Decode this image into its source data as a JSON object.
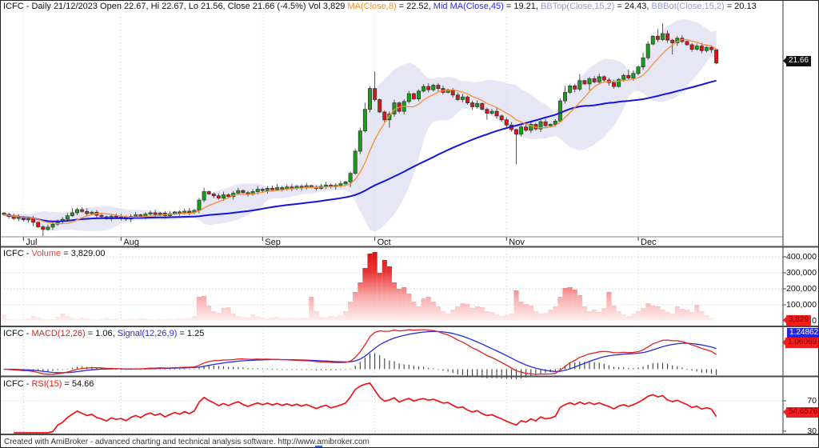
{
  "colors": {
    "candle_up": "#0fa412",
    "candle_down": "#e11212",
    "wick": "#444444",
    "ma8": "#f59133",
    "ma45": "#1515dd",
    "bb_band_fill": "#d6d6ee",
    "volume_top": "#df0f0f",
    "volume_bottom": "#fdf0ef",
    "macd_line": "#e02020",
    "signal_line": "#2a2ae0",
    "histogram": "#3d3d3d",
    "rsi_line": "#ef1212",
    "grid": "#cccccc",
    "panel_border": "#4a4a4a"
  },
  "price_panel": {
    "title_parts": [
      {
        "t": "ICFC - Daily 21/12/2023 Open 22.67, Hi 22.67, Lo 21.56, Close 21.66 (-4.5%) Vol 3,829 ",
        "c": "#111111"
      },
      {
        "t": "MA(Close,8)",
        "c": "#f59133"
      },
      {
        "t": " = 22.52, ",
        "c": "#111111"
      },
      {
        "t": "Mid MA(Close,45)",
        "c": "#2a2ae0"
      },
      {
        "t": " = 19.21, ",
        "c": "#111111"
      },
      {
        "t": "BBTop(Close,15,2)",
        "c": "#9a9ad0"
      },
      {
        "t": " = 24.43, ",
        "c": "#111111"
      },
      {
        "t": "BBBot(Close,15,2)",
        "c": "#9a9ad0"
      },
      {
        "t": " = 20.13",
        "c": "#111111"
      }
    ],
    "price_badge": "21.66"
  },
  "volume_panel": {
    "title_parts": [
      {
        "t": "ICFC - ",
        "c": "#111111"
      },
      {
        "t": "Volume",
        "c": "#e04545"
      },
      {
        "t": " = 3,829.00",
        "c": "#111111"
      }
    ],
    "y_ticks": [
      {
        "label": "400,000",
        "v": 400000
      },
      {
        "label": "300,000",
        "v": 300000
      },
      {
        "label": "200,000",
        "v": 200000
      },
      {
        "label": "100,000",
        "v": 100000
      }
    ],
    "zero_label": "0",
    "volume_badge": "3,829"
  },
  "macd_panel": {
    "title_parts": [
      {
        "t": "ICFC - ",
        "c": "#111111"
      },
      {
        "t": "MACD(12,26)",
        "c": "#e02020"
      },
      {
        "t": " = 1.06, ",
        "c": "#111111"
      },
      {
        "t": "Signal(12,26,9)",
        "c": "#2a2ae0"
      },
      {
        "t": " = 1.25",
        "c": "#111111"
      }
    ],
    "signal_badge": "1.24862",
    "macd_badge": "1.06069"
  },
  "rsi_panel": {
    "title_parts": [
      {
        "t": "ICFC - ",
        "c": "#111111"
      },
      {
        "t": "RSI(15)",
        "c": "#e02020"
      },
      {
        "t": " = 54.66",
        "c": "#111111"
      }
    ],
    "y_ticks": [
      {
        "label": "70",
        "v": 70
      },
      {
        "label": "30",
        "v": 30
      }
    ],
    "rsi_badge": "54.6576"
  },
  "footer": {
    "text": "Created with AmiBroker - advanced charting and technical analysis software. http://www.amibroker.com"
  },
  "chart_data": [
    {
      "type": "candlestick",
      "name": "price",
      "symbol": "ICFC",
      "timeframe": "Daily",
      "date": "21/12/2023",
      "today": {
        "open": 22.67,
        "high": 22.67,
        "low": 21.56,
        "close": 21.66,
        "change_pct": "-4.5%",
        "volume": 3829
      },
      "indicator_values": {
        "ma8": 22.52,
        "ma45": 19.21,
        "bbtop": 24.43,
        "bbbot": 20.13
      },
      "x_ticks": [
        {
          "label": "Jul",
          "i": 4
        },
        {
          "label": "Aug",
          "i": 24
        },
        {
          "label": "Sep",
          "i": 53
        },
        {
          "label": "Oct",
          "i": 76
        },
        {
          "label": "Nov",
          "i": 103
        },
        {
          "label": "Dec",
          "i": 130
        }
      ],
      "close": [
        10.05,
        9.9,
        9.75,
        9.82,
        9.65,
        9.72,
        9.45,
        9.1,
        8.9,
        9.08,
        9.3,
        9.55,
        9.68,
        9.95,
        10.18,
        10.42,
        10.28,
        10.12,
        10.22,
        9.98,
        9.88,
        9.72,
        9.92,
        9.8,
        9.86,
        9.7,
        9.9,
        10.02,
        9.88,
        10.08,
        10.18,
        10.05,
        10.15,
        9.96,
        10.1,
        10.24,
        10.14,
        10.3,
        10.2,
        10.36,
        11.15,
        11.8,
        11.62,
        11.48,
        11.3,
        11.55,
        11.42,
        11.68,
        11.88,
        11.72,
        11.6,
        11.8,
        11.98,
        11.88,
        12.05,
        11.95,
        12.1,
        12.0,
        12.15,
        12.05,
        12.2,
        12.1,
        12.25,
        12.15,
        12.05,
        12.2,
        12.3,
        12.18,
        12.28,
        12.4,
        12.55,
        13.2,
        14.9,
        16.45,
        18.1,
        19.7,
        18.85,
        17.9,
        17.3,
        17.75,
        18.6,
        17.95,
        18.7,
        19.3,
        18.9,
        19.5,
        19.85,
        19.6,
        19.95,
        19.7,
        19.4,
        19.6,
        19.2,
        18.85,
        19.05,
        18.6,
        18.3,
        18.55,
        18.1,
        17.8,
        17.95,
        17.6,
        17.3,
        16.9,
        16.55,
        16.2,
        16.75,
        16.5,
        16.95,
        16.6,
        17.15,
        16.85,
        16.95,
        17.2,
        18.75,
        19.4,
        19.9,
        19.65,
        20.3,
        20.05,
        20.45,
        20.2,
        20.6,
        20.35,
        20.15,
        19.85,
        20.4,
        20.7,
        20.5,
        20.85,
        21.35,
        22.05,
        23.1,
        23.7,
        23.45,
        23.9,
        23.4,
        23.2,
        23.55,
        23.3,
        23.05,
        22.7,
        22.95,
        22.6,
        22.85,
        22.67,
        21.66
      ],
      "wick_up_overrides": {
        "14": 0.35,
        "41": 0.3,
        "56": 0.3,
        "74": 0.5,
        "76": 1.3,
        "115": 0.5,
        "118": 0.5,
        "128": 0.45,
        "131": 0.4,
        "134": 0.55,
        "135": 0.8
      },
      "wick_dn_overrides": {
        "6": 0.3,
        "8": 0.5,
        "71": 0.4,
        "79": 0.6,
        "99": 0.5,
        "105": 2.3,
        "120": 0.5,
        "137": 0.9
      },
      "last_candle": {
        "open": 22.67,
        "high": 22.67,
        "low": 21.56,
        "close": 21.66
      },
      "overlays": [
        "MA(Close,8)",
        "Mid MA(Close,45)",
        "BBTop(Close,15,2)",
        "BBBot(Close,15,2)"
      ]
    },
    {
      "type": "area",
      "name": "volume",
      "current": 3829,
      "ylim": [
        0,
        430000
      ],
      "values": [
        38000,
        12000,
        8000,
        6000,
        10000,
        14000,
        30000,
        22000,
        12000,
        8000,
        10000,
        25000,
        45000,
        30000,
        18000,
        12000,
        20000,
        15000,
        10000,
        8000,
        12000,
        18000,
        10000,
        14000,
        8000,
        10000,
        15000,
        12000,
        18000,
        14000,
        10000,
        8000,
        12000,
        10000,
        14000,
        12000,
        16000,
        14000,
        18000,
        30000,
        150000,
        155000,
        95000,
        60000,
        50000,
        80000,
        85000,
        45000,
        30000,
        25000,
        22000,
        40000,
        28000,
        18000,
        15000,
        20000,
        25000,
        18000,
        15000,
        20000,
        15000,
        18000,
        20000,
        150000,
        60000,
        25000,
        20000,
        30000,
        25000,
        35000,
        60000,
        120000,
        180000,
        240000,
        330000,
        420000,
        430000,
        300000,
        380000,
        340000,
        240000,
        200000,
        210000,
        170000,
        120000,
        90000,
        140000,
        150000,
        120000,
        90000,
        60000,
        45000,
        70000,
        90000,
        110000,
        105000,
        80000,
        90000,
        85000,
        60000,
        55000,
        40000,
        30000,
        35000,
        45000,
        190000,
        120000,
        105000,
        95000,
        60000,
        45000,
        50000,
        70000,
        90000,
        150000,
        205000,
        210000,
        195000,
        160000,
        90000,
        60000,
        70000,
        55000,
        80000,
        180000,
        95000,
        60000,
        40000,
        30000,
        45000,
        60000,
        80000,
        110000,
        95000,
        90000,
        70000,
        55000,
        45000,
        90000,
        75000,
        70000,
        55000,
        100000,
        60000,
        35000,
        20000,
        3829
      ]
    },
    {
      "type": "line",
      "name": "macd",
      "params": "12,26,9",
      "derived_from": "price.close",
      "macd_value": 1.06,
      "signal_value": 1.25
    },
    {
      "type": "line",
      "name": "rsi",
      "period": 15,
      "value": 54.66,
      "y_ticks": [
        70,
        30
      ],
      "derived_from": "price.close"
    }
  ]
}
